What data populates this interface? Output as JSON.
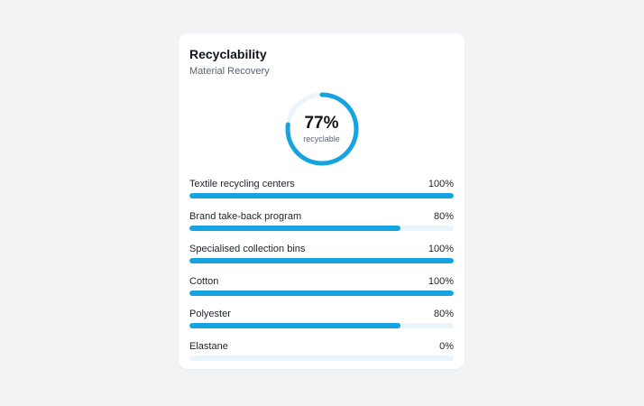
{
  "card": {
    "title": "Recyclability",
    "subtitle": "Material Recovery"
  },
  "gauge": {
    "value_text": "77%",
    "value": 0.77,
    "label": "recyclable"
  },
  "colors": {
    "accent": "#16a3e0",
    "track": "#e9f4fb"
  },
  "rows": [
    {
      "label": "Textile recycling centers",
      "value_text": "100%",
      "value": 1.0
    },
    {
      "label": "Brand take-back program",
      "value_text": "80%",
      "value": 0.8
    },
    {
      "label": "Specialised collection bins",
      "value_text": "100%",
      "value": 1.0
    },
    {
      "label": "Cotton",
      "value_text": "100%",
      "value": 1.0
    },
    {
      "label": "Polyester",
      "value_text": "80%",
      "value": 0.8
    },
    {
      "label": "Elastane",
      "value_text": "0%",
      "value": 0.0
    }
  ]
}
